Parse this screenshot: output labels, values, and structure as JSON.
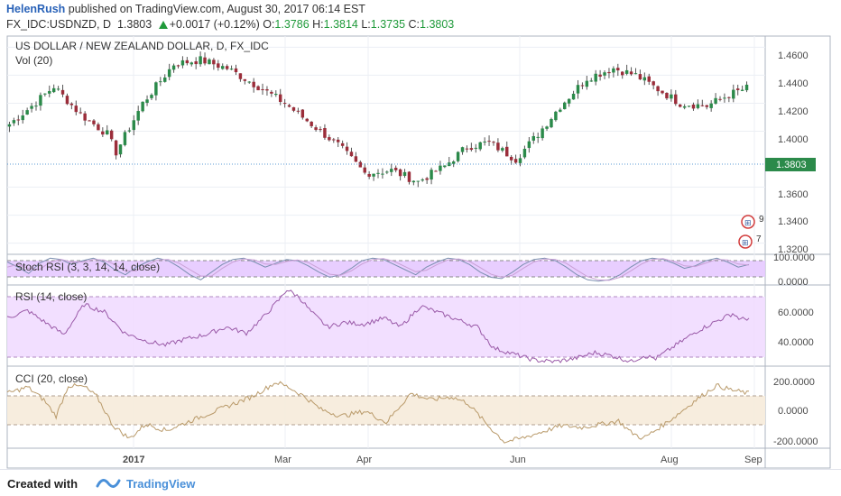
{
  "header": {
    "author": "HelenRush",
    "published": " published on TradingView.com, August 30, 2017 06:14 EST",
    "symbol": "FX_IDC:USDNZD, D",
    "last": "1.3803",
    "change": "+0.0017 (+0.12%)",
    "o_label": "O:",
    "o_val": "1.3786",
    "h_label": "H:",
    "h_val": "1.3814",
    "l_label": "L:",
    "l_val": "1.3735",
    "c_label": "C:",
    "c_val": "1.3803"
  },
  "footer": {
    "created": "Created with",
    "brand": "TradingView"
  },
  "colors": {
    "up": "#2b8a4a",
    "down": "#9b2d3a",
    "stoch_bg": "#e6c9ff",
    "rsi_bg": "#f1dcff",
    "cci_bg": "#f7ecdc"
  },
  "chart_data": [
    {
      "type": "candlestick",
      "title": "US DOLLAR / NEW ZEALAND DOLLAR, D, FX_IDC",
      "subtitle": "Vol (20)",
      "y_ticks": [
        "1.4600",
        "1.4400",
        "1.4200",
        "1.4000",
        "1.3600",
        "1.3400",
        "1.3200"
      ],
      "last_price_label": "1.3803",
      "ylim": [
        1.312,
        1.468
      ],
      "x_ticks": [
        "2017",
        "Mar",
        "Apr",
        "Jun",
        "Aug",
        "Sep"
      ],
      "markers": [
        "9",
        "7"
      ],
      "close_anchors": [
        [
          0,
          1.405
        ],
        [
          5,
          1.418
        ],
        [
          10,
          1.432
        ],
        [
          16,
          1.412
        ],
        [
          22,
          1.398
        ],
        [
          24,
          1.385
        ],
        [
          30,
          1.42
        ],
        [
          37,
          1.448
        ],
        [
          43,
          1.451
        ],
        [
          49,
          1.445
        ],
        [
          56,
          1.432
        ],
        [
          62,
          1.42
        ],
        [
          68,
          1.405
        ],
        [
          74,
          1.39
        ],
        [
          80,
          1.37
        ],
        [
          86,
          1.372
        ],
        [
          92,
          1.364
        ],
        [
          98,
          1.375
        ],
        [
          103,
          1.389
        ],
        [
          108,
          1.392
        ],
        [
          114,
          1.38
        ],
        [
          119,
          1.398
        ],
        [
          124,
          1.418
        ],
        [
          130,
          1.438
        ],
        [
          136,
          1.445
        ],
        [
          141,
          1.44
        ],
        [
          146,
          1.43
        ],
        [
          151,
          1.42
        ],
        [
          157,
          1.418
        ],
        [
          162,
          1.426
        ],
        [
          167,
          1.432
        ],
        [
          172,
          1.44
        ],
        [
          177,
          1.438
        ],
        [
          182,
          1.43
        ],
        [
          187,
          1.422
        ],
        [
          191,
          1.425
        ],
        [
          196,
          1.448
        ],
        [
          201,
          1.458
        ],
        [
          206,
          1.455
        ],
        [
          211,
          1.445
        ],
        [
          216,
          1.452
        ],
        [
          221,
          1.46
        ],
        [
          226,
          1.455
        ],
        [
          232,
          1.44
        ],
        [
          237,
          1.428
        ],
        [
          242,
          1.42
        ],
        [
          247,
          1.41
        ],
        [
          252,
          1.402
        ],
        [
          257,
          1.395
        ],
        [
          262,
          1.388
        ],
        [
          267,
          1.382
        ],
        [
          272,
          1.375
        ],
        [
          277,
          1.372
        ],
        [
          282,
          1.368
        ],
        [
          287,
          1.37
        ],
        [
          292,
          1.378
        ],
        [
          297,
          1.383
        ],
        [
          302,
          1.372
        ],
        [
          307,
          1.365
        ],
        [
          311,
          1.355
        ],
        [
          315,
          1.34
        ],
        [
          320,
          1.326
        ],
        [
          324,
          1.332
        ],
        [
          328,
          1.345
        ],
        [
          333,
          1.36
        ],
        [
          338,
          1.372
        ],
        [
          343,
          1.378
        ],
        [
          348,
          1.375
        ],
        [
          352,
          1.368
        ],
        [
          356,
          1.372
        ],
        [
          360,
          1.383
        ],
        [
          366,
          1.38
        ]
      ]
    },
    {
      "type": "line",
      "title": "Stoch RSI (3, 3, 14, 14, close)",
      "y_ticks": [
        "100.0000",
        "0.0000"
      ],
      "ylim": [
        -10,
        110
      ],
      "series": [
        {
          "values": [
            80,
            60,
            35,
            75,
            95,
            90,
            70,
            85,
            95,
            80,
            50,
            30,
            60,
            80,
            95,
            85,
            60,
            30,
            10,
            40,
            70,
            90,
            95,
            80,
            60,
            75,
            90,
            85,
            65,
            40,
            20,
            30,
            55,
            85,
            95,
            90,
            70,
            50,
            30,
            60,
            80,
            95,
            90,
            70,
            40,
            20,
            15,
            40,
            70,
            90,
            95,
            85,
            60,
            30,
            10,
            5,
            10,
            30,
            60,
            85,
            95,
            90,
            75,
            55,
            65,
            85,
            95,
            80,
            60,
            70
          ]
        },
        {
          "values": [
            60,
            70,
            55,
            50,
            80,
            90,
            80,
            80,
            90,
            88,
            70,
            45,
            45,
            70,
            88,
            90,
            75,
            50,
            25,
            25,
            55,
            80,
            92,
            88,
            72,
            70,
            82,
            88,
            78,
            55,
            32,
            28,
            45,
            72,
            90,
            93,
            82,
            62,
            42,
            48,
            70,
            88,
            92,
            82,
            58,
            32,
            20,
            28,
            55,
            80,
            92,
            90,
            75,
            48,
            22,
            10,
            8,
            20,
            45,
            72,
            90,
            93,
            82,
            65,
            62,
            76,
            90,
            88,
            72,
            68
          ]
        }
      ]
    },
    {
      "type": "line",
      "title": "RSI (14, close)",
      "y_ticks": [
        "60.0000",
        "40.0000"
      ],
      "ylim": [
        26,
        80
      ],
      "anchors": [
        [
          0,
          58
        ],
        [
          10,
          63
        ],
        [
          20,
          54
        ],
        [
          28,
          47
        ],
        [
          38,
          67
        ],
        [
          48,
          62
        ],
        [
          58,
          48
        ],
        [
          68,
          43
        ],
        [
          78,
          40
        ],
        [
          88,
          44
        ],
        [
          98,
          47
        ],
        [
          108,
          52
        ],
        [
          118,
          48
        ],
        [
          126,
          58
        ],
        [
          134,
          70
        ],
        [
          138,
          77
        ],
        [
          144,
          72
        ],
        [
          150,
          62
        ],
        [
          158,
          52
        ],
        [
          166,
          55
        ],
        [
          176,
          54
        ],
        [
          186,
          58
        ],
        [
          194,
          52
        ],
        [
          204,
          66
        ],
        [
          212,
          62
        ],
        [
          222,
          57
        ],
        [
          232,
          52
        ],
        [
          240,
          38
        ],
        [
          250,
          34
        ],
        [
          260,
          30
        ],
        [
          270,
          29
        ],
        [
          280,
          31
        ],
        [
          290,
          35
        ],
        [
          298,
          33
        ],
        [
          308,
          29
        ],
        [
          314,
          33
        ],
        [
          320,
          31
        ],
        [
          330,
          40
        ],
        [
          340,
          49
        ],
        [
          350,
          56
        ],
        [
          358,
          61
        ],
        [
          362,
          57
        ],
        [
          366,
          58
        ]
      ]
    },
    {
      "type": "line",
      "title": "CCI (20, close)",
      "y_ticks": [
        "200.0000",
        "0.0000",
        "-200.0000"
      ],
      "ylim": [
        -260,
        250
      ],
      "anchors": [
        [
          0,
          80
        ],
        [
          10,
          120
        ],
        [
          18,
          40
        ],
        [
          24,
          -60
        ],
        [
          30,
          130
        ],
        [
          38,
          120
        ],
        [
          44,
          60
        ],
        [
          52,
          -120
        ],
        [
          60,
          -200
        ],
        [
          68,
          -110
        ],
        [
          78,
          -150
        ],
        [
          88,
          -100
        ],
        [
          100,
          -40
        ],
        [
          112,
          20
        ],
        [
          120,
          60
        ],
        [
          128,
          120
        ],
        [
          132,
          150
        ],
        [
          138,
          120
        ],
        [
          146,
          60
        ],
        [
          154,
          -20
        ],
        [
          164,
          -60
        ],
        [
          176,
          -30
        ],
        [
          186,
          -100
        ],
        [
          198,
          80
        ],
        [
          208,
          40
        ],
        [
          218,
          60
        ],
        [
          226,
          20
        ],
        [
          236,
          -120
        ],
        [
          244,
          -220
        ],
        [
          252,
          -200
        ],
        [
          262,
          -160
        ],
        [
          272,
          -120
        ],
        [
          282,
          -130
        ],
        [
          292,
          -110
        ],
        [
          300,
          -90
        ],
        [
          306,
          -160
        ],
        [
          312,
          -200
        ],
        [
          318,
          -150
        ],
        [
          328,
          -60
        ],
        [
          338,
          40
        ],
        [
          348,
          130
        ],
        [
          356,
          100
        ],
        [
          364,
          80
        ]
      ]
    }
  ]
}
